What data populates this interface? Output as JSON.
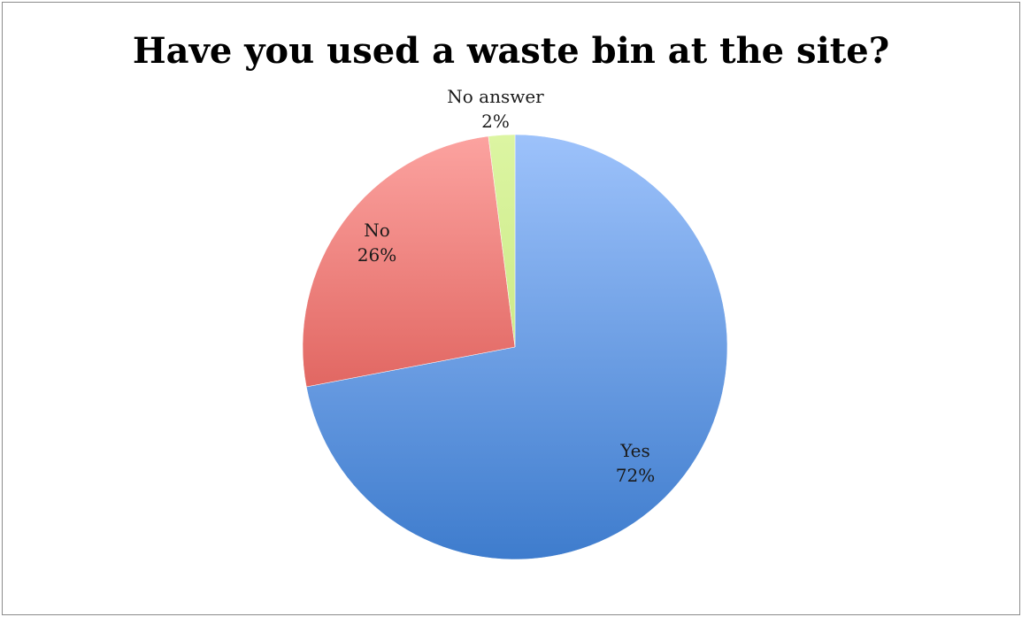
{
  "chart_data": {
    "type": "pie",
    "title": "Have you used a waste bin at the site?",
    "slices": [
      {
        "label": "Yes",
        "value": 72,
        "display": "72%",
        "color_top": "#9dc2fb",
        "color_bottom": "#3e7ccd"
      },
      {
        "label": "No",
        "value": 26,
        "display": "26%",
        "color_top": "#fca3a0",
        "color_bottom": "#cf3e38"
      },
      {
        "label": "No answer",
        "value": 2,
        "display": "2%",
        "color_top": "#dcf5a2",
        "color_bottom": "#bde070"
      }
    ],
    "start_angle_deg": 0,
    "direction": "clockwise",
    "legend": "none",
    "data_labels": "category and percentage"
  }
}
